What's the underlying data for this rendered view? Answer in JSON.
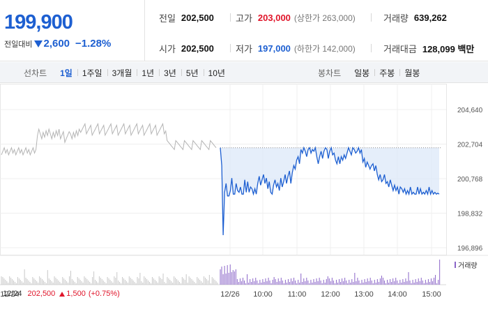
{
  "summary": {
    "current_price": "199,900",
    "change_label": "전일대비",
    "change_value": "2,600",
    "change_rate": "−1.28%",
    "change_direction": "down"
  },
  "stats": {
    "prev_close": {
      "label": "전일",
      "value": "202,500"
    },
    "high": {
      "label": "고가",
      "value": "203,000",
      "sub": "(상한가 263,000)"
    },
    "volume": {
      "label": "거래량",
      "value": "639,262"
    },
    "open": {
      "label": "시가",
      "value": "202,500"
    },
    "low": {
      "label": "저가",
      "value": "197,000",
      "sub": "(하한가 142,000)"
    },
    "trade_amount": {
      "label": "거래대금",
      "value": "128,099 백만"
    }
  },
  "toolbar": {
    "line_chart_title": "선차트",
    "line_periods": [
      "1일",
      "1주일",
      "3개월",
      "1년",
      "3년",
      "5년",
      "10년"
    ],
    "active_period": "1일",
    "candle_title": "봉차트",
    "candle_periods": [
      "일봉",
      "주봉",
      "월봉"
    ]
  },
  "colors": {
    "up": "#e0152a",
    "down": "#1d5fd1",
    "prev_day_line": "#b4b4b4",
    "volume": "#8a64c8"
  },
  "chart_data": {
    "type": "line",
    "y_ticks": [
      "204,640",
      "202,704",
      "200,768",
      "198,832",
      "196,896"
    ],
    "ylim": [
      196896,
      204640
    ],
    "x_ticks": [
      "12/24",
      "12/26",
      "10:00",
      "11:00",
      "12:00",
      "13:00",
      "14:00",
      "15:00"
    ],
    "volume_legend": "거래량",
    "prev_day_info": {
      "date": "12/24",
      "price": "202,500",
      "change": "1,500",
      "rate": "(+0.75%)"
    },
    "series": [
      {
        "x": [
          "09:00",
          "09:20",
          "09:40",
          "10:00",
          "10:20",
          "10:40",
          "11:00",
          "11:20",
          "11:40",
          "12:00",
          "12:20",
          "12:40",
          "13:00",
          "13:20",
          "13:40",
          "14:00",
          "14:20",
          "14:40",
          "15:00",
          "15:20"
        ],
        "values": [
          [
            202500,
            201500,
            197600,
            200000,
            200500,
            199800,
            199800,
            200100
          ],
          [
            200800,
            199900,
            199900,
            200500,
            200100,
            200000,
            200300,
            199900
          ],
          [
            199900,
            200700,
            200000,
            200600,
            200000,
            200300,
            200200,
            199900
          ],
          [
            200200,
            199900,
            200500,
            200900,
            200400,
            200700,
            201000,
            200500
          ],
          [
            200800,
            200200,
            200600,
            200000,
            199900,
            200400,
            200700,
            200300
          ],
          [
            200500,
            200100,
            200800,
            200300,
            200600,
            201000,
            200500,
            200900
          ],
          [
            201200,
            200500,
            201100,
            201500,
            201300,
            201800,
            202000,
            201600
          ],
          [
            202400,
            202200,
            202500,
            202300,
            202000,
            202400,
            202500,
            202200
          ],
          [
            202400,
            202300,
            202500,
            202000,
            201600,
            202000,
            202300,
            201900
          ],
          [
            202300,
            202500,
            202400,
            201900,
            202300,
            202500,
            202100,
            202200
          ],
          [
            201800,
            201600,
            202000,
            201600,
            202000,
            201800,
            202100,
            201900
          ],
          [
            202200,
            202500,
            202300,
            202100,
            202500,
            202400,
            202200,
            202300
          ],
          [
            202500,
            202200,
            202400,
            201700,
            201900,
            201400,
            201700,
            201500
          ],
          [
            201300,
            201500,
            201600,
            201200,
            201500,
            201000,
            200700,
            201000
          ],
          [
            200600,
            200700,
            201000,
            200500,
            200600,
            200300,
            200700,
            200400
          ],
          [
            200100,
            200400,
            200100,
            200300,
            199900,
            200300,
            200200,
            200000
          ],
          [
            200200,
            199900,
            200100,
            199900,
            200300,
            199900,
            200000,
            199900
          ],
          [
            199900,
            200300,
            199900,
            200200,
            199900,
            200000,
            199900,
            200100
          ],
          [
            199900,
            200300,
            199900,
            200100,
            199900,
            200000,
            199900,
            199950
          ],
          [
            199900
          ]
        ]
      }
    ]
  }
}
